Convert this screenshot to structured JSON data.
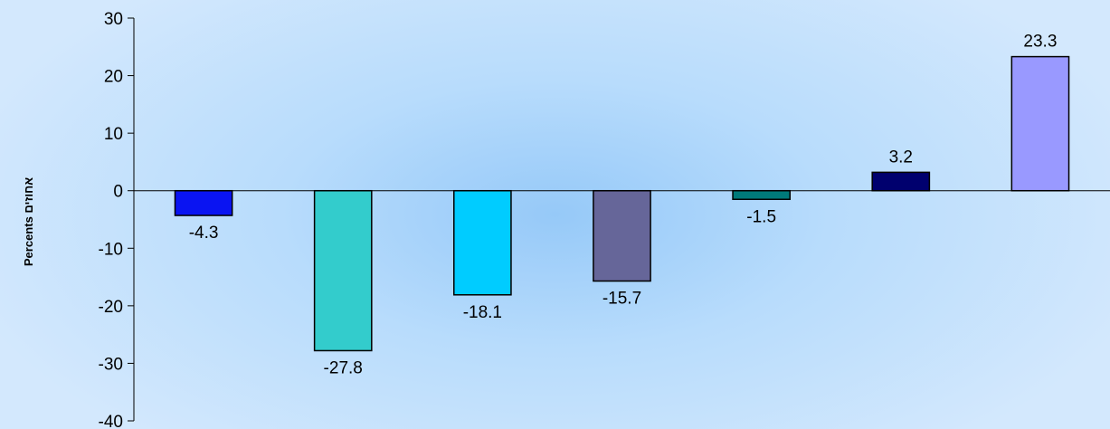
{
  "chart_data": {
    "type": "bar",
    "categories": [
      "",
      "",
      "",
      "",
      "",
      "",
      ""
    ],
    "values": [
      -4.3,
      -27.8,
      -18.1,
      -15.7,
      -1.5,
      3.2,
      23.3
    ],
    "value_labels": [
      "-4.3",
      "-27.8",
      "-18.1",
      "-15.7",
      "-1.5",
      "3.2",
      "23.3"
    ],
    "bar_colors": [
      "#0a14f2",
      "#33cccc",
      "#00ccff",
      "#666699",
      "#007a7a",
      "#00006e",
      "#9999ff"
    ],
    "title": "",
    "xlabel": "",
    "ylabel": "Percents אחוזים",
    "ylim": [
      -40,
      30
    ],
    "yticks": [
      30,
      20,
      10,
      0,
      -10,
      -20,
      -30,
      -40
    ],
    "ytick_labels": [
      "30",
      "20",
      "10",
      "0",
      "-10",
      "-20",
      "-30",
      "-40"
    ],
    "grid": false,
    "legend": false
  }
}
